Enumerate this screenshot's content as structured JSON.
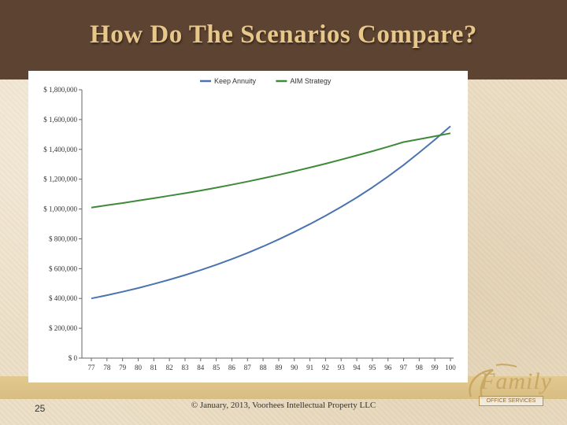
{
  "slide": {
    "title": "How Do The Scenarios Compare?",
    "page_number": "25",
    "copyright": "© January, 2013, Voorhees Intellectual Property LLC",
    "logo_text": "Family",
    "logo_subtext": "OFFICE SERVICES"
  },
  "colors": {
    "title_band": "#5d4331",
    "title_text": "#e7c78a",
    "keep_annuity": "#4a73b0",
    "aim_strategy": "#3e8a3a"
  },
  "chart_data": {
    "type": "line",
    "title": "",
    "xlabel": "",
    "ylabel": "",
    "x": [
      "77",
      "78",
      "79",
      "80",
      "81",
      "82",
      "83",
      "84",
      "85",
      "86",
      "87",
      "88",
      "89",
      "90",
      "91",
      "92",
      "93",
      "94",
      "95",
      "96",
      "97",
      "98",
      "99",
      "100"
    ],
    "ylim": [
      0,
      1800000
    ],
    "yticks": [
      0,
      200000,
      400000,
      600000,
      800000,
      1000000,
      1200000,
      1400000,
      1600000,
      1800000
    ],
    "ytick_labels": [
      "$ 0",
      "$ 200,000",
      "$ 400,000",
      "$ 600,000",
      "$ 800,000",
      "$ 1,000,000",
      "$ 1,200,000",
      "$ 1,400,000",
      "$ 1,600,000",
      "$ 1,800,000"
    ],
    "legend_position": "top-center",
    "grid": false,
    "series": [
      {
        "name": "Keep Annuity",
        "color": "#4a73b0",
        "values": [
          400000,
          422000,
          445000,
          470000,
          497000,
          526000,
          557000,
          590000,
          626000,
          664000,
          705000,
          749000,
          796000,
          846000,
          899000,
          955000,
          1014000,
          1077000,
          1145000,
          1218000,
          1295000,
          1378000,
          1465000,
          1555000
        ]
      },
      {
        "name": "AIM Strategy",
        "color": "#3e8a3a",
        "values": [
          1010000,
          1025000,
          1040000,
          1056000,
          1072000,
          1089000,
          1106000,
          1124000,
          1143000,
          1163000,
          1184000,
          1206000,
          1229000,
          1253000,
          1278000,
          1304000,
          1331000,
          1359000,
          1388000,
          1418000,
          1449000,
          1468000,
          1488000,
          1508000
        ]
      }
    ]
  }
}
